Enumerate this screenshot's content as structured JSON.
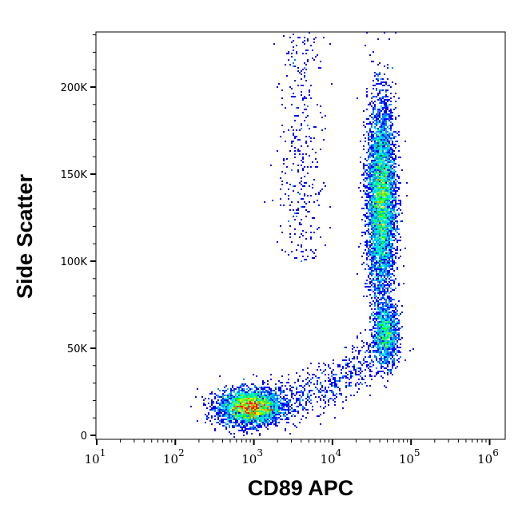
{
  "chart_data": {
    "type": "scatter",
    "subtype": "density-dot-plot",
    "xlabel": "CD89 APC",
    "ylabel": "Side Scatter",
    "x_scale": "log",
    "xlim": [
      10,
      1500000
    ],
    "ylim": [
      0,
      232000
    ],
    "x_ticks": [
      {
        "value": 10,
        "base": "10",
        "exp": "1"
      },
      {
        "value": 100,
        "base": "10",
        "exp": "2"
      },
      {
        "value": 1000,
        "base": "10",
        "exp": "3"
      },
      {
        "value": 10000,
        "base": "10",
        "exp": "4"
      },
      {
        "value": 100000,
        "base": "10",
        "exp": "5"
      },
      {
        "value": 1000000,
        "base": "10",
        "exp": "6"
      }
    ],
    "y_ticks": [
      {
        "value": 0,
        "label": "0"
      },
      {
        "value": 50000,
        "label": "50K"
      },
      {
        "value": 100000,
        "label": "100K"
      },
      {
        "value": 150000,
        "label": "150K"
      },
      {
        "value": 200000,
        "label": "200K"
      }
    ],
    "grid": false,
    "colormap": [
      "#0000ff",
      "#00a0ff",
      "#00ffff",
      "#00ff00",
      "#ffff00",
      "#ff8000",
      "#ff0000"
    ],
    "populations": [
      {
        "x_center": 900,
        "x_log_sd": 0.2,
        "y_center": 16000,
        "y_sd": 5000,
        "events": 3500
      },
      {
        "x_center": 42000,
        "x_log_sd": 0.09,
        "y_center": 135000,
        "y_sd": 28000,
        "events": 5000
      },
      {
        "x_center": 48000,
        "x_log_sd": 0.08,
        "y_center": 58000,
        "y_sd": 9000,
        "events": 1200
      },
      {
        "x_from": 1600,
        "x_to": 40000,
        "y_from": 20000,
        "y_to": 50000,
        "events": 600
      },
      {
        "x_center": 4000,
        "x_log_sd": 0.15,
        "y_min": 100000,
        "y_max": 232000,
        "events": 350
      }
    ]
  }
}
